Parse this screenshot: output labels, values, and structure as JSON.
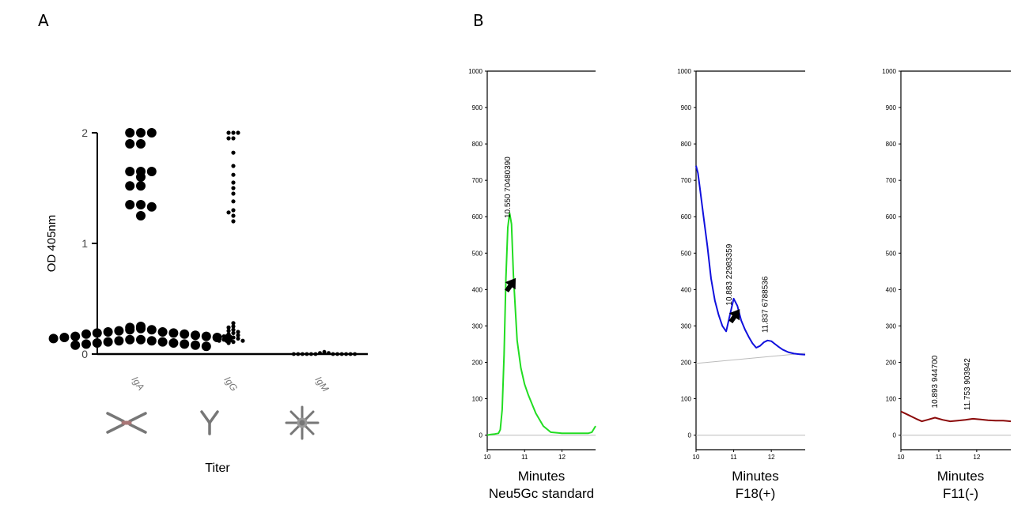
{
  "panel_labels": [
    "A",
    "B"
  ],
  "chart_data": [
    {
      "type": "scatter",
      "panel": "A",
      "ylabel": "OD 405nm",
      "xlabel": "Titer",
      "categories": [
        "IgA",
        "IgG",
        "IgM"
      ],
      "ylim": [
        0,
        2
      ],
      "yticks": [
        "0",
        "1",
        "2"
      ],
      "series": [
        {
          "category": "IgA",
          "values": [
            2.0,
            2.0,
            2.0,
            1.9,
            1.9,
            1.65,
            1.65,
            1.65,
            1.6,
            1.52,
            1.52,
            1.35,
            1.35,
            1.33,
            1.25,
            0.25,
            0.24,
            0.23,
            0.22,
            0.22,
            0.21,
            0.2,
            0.2,
            0.19,
            0.19,
            0.18,
            0.18,
            0.17,
            0.16,
            0.16,
            0.15,
            0.15,
            0.14,
            0.14,
            0.13,
            0.13,
            0.12,
            0.12,
            0.11,
            0.11,
            0.1,
            0.1,
            0.09,
            0.09,
            0.08,
            0.08,
            0.07
          ]
        },
        {
          "category": "IgG",
          "values": [
            2.0,
            2.0,
            2.0,
            1.95,
            1.95,
            1.82,
            1.7,
            1.62,
            1.55,
            1.5,
            1.45,
            1.38,
            1.3,
            1.28,
            1.25,
            1.2,
            0.28,
            0.25,
            0.24,
            0.22,
            0.21,
            0.2,
            0.19,
            0.18,
            0.17,
            0.16,
            0.15,
            0.15,
            0.14,
            0.13,
            0.12,
            0.12,
            0.11,
            0.1
          ]
        },
        {
          "category": "IgM",
          "values": [
            0.02,
            0.01,
            0.01,
            0.01,
            0.0,
            0.0,
            0.0,
            0.0,
            0.0,
            0.0,
            0.0,
            0.0,
            0.0,
            0.0,
            0.0,
            0.0
          ]
        }
      ]
    },
    {
      "type": "line",
      "panel": "B",
      "title": "Neu5Gc standard",
      "xlabel": "Minutes",
      "xlim": [
        10,
        12.9
      ],
      "ylim": [
        -40,
        1000
      ],
      "xticks": [
        10,
        11,
        12
      ],
      "yticks": [
        0,
        100,
        200,
        300,
        400,
        500,
        600,
        700,
        800,
        900,
        1000
      ],
      "color": "#22dd22",
      "x": [
        10.0,
        10.1,
        10.2,
        10.3,
        10.35,
        10.4,
        10.45,
        10.5,
        10.55,
        10.6,
        10.65,
        10.7,
        10.8,
        10.9,
        11.0,
        11.1,
        11.3,
        11.5,
        11.7,
        12.0,
        12.3,
        12.5,
        12.7,
        12.8,
        12.9
      ],
      "y": [
        0,
        2,
        3,
        5,
        15,
        70,
        220,
        430,
        570,
        610,
        580,
        440,
        260,
        185,
        140,
        110,
        60,
        25,
        8,
        5,
        5,
        5,
        5,
        8,
        25
      ],
      "peak_labels": [
        {
          "x": 10.55,
          "text": "10.550 70480390"
        }
      ],
      "arrow_x": 10.72
    },
    {
      "type": "line",
      "panel": "B",
      "title": "F18(+)",
      "xlabel": "Minutes",
      "xlim": [
        10,
        12.9
      ],
      "ylim": [
        -40,
        1000
      ],
      "xticks": [
        10,
        11,
        12
      ],
      "yticks": [
        0,
        100,
        200,
        300,
        400,
        500,
        600,
        700,
        800,
        900,
        1000
      ],
      "color": "#1010dd",
      "x": [
        10.0,
        10.05,
        10.1,
        10.2,
        10.3,
        10.4,
        10.5,
        10.6,
        10.7,
        10.8,
        10.9,
        11.0,
        11.1,
        11.2,
        11.3,
        11.4,
        11.5,
        11.6,
        11.7,
        11.8,
        11.9,
        12.0,
        12.1,
        12.2,
        12.3,
        12.45,
        12.6,
        12.75,
        12.9
      ],
      "y": [
        740,
        720,
        680,
        600,
        520,
        430,
        370,
        330,
        300,
        285,
        330,
        375,
        355,
        315,
        290,
        270,
        252,
        240,
        245,
        255,
        260,
        258,
        250,
        242,
        235,
        228,
        224,
        222,
        221
      ],
      "baseline": [
        [
          10,
          197
        ],
        [
          12.9,
          225
        ]
      ],
      "peak_labels": [
        {
          "x": 10.883,
          "text": "10.883 22983359"
        },
        {
          "x": 11.837,
          "text": "11.837 6788536"
        }
      ],
      "arrow_x": 11.12
    },
    {
      "type": "line",
      "panel": "B",
      "title": "F11(-)",
      "xlabel": "Minutes",
      "xlim": [
        10,
        12.9
      ],
      "ylim": [
        -40,
        1000
      ],
      "xticks": [
        10,
        11,
        12
      ],
      "yticks": [
        0,
        100,
        200,
        300,
        400,
        500,
        600,
        700,
        800,
        900,
        1000
      ],
      "color": "#8b0a0a",
      "x": [
        10.0,
        10.2,
        10.4,
        10.55,
        10.7,
        10.9,
        11.1,
        11.3,
        11.5,
        11.7,
        11.9,
        12.1,
        12.3,
        12.5,
        12.7,
        12.9
      ],
      "y": [
        65,
        55,
        45,
        38,
        42,
        48,
        42,
        38,
        40,
        42,
        45,
        43,
        41,
        40,
        40,
        38
      ],
      "peak_labels": [
        {
          "x": 10.893,
          "text": "10.893 944700"
        },
        {
          "x": 11.753,
          "text": "11.753 903942"
        }
      ]
    }
  ]
}
